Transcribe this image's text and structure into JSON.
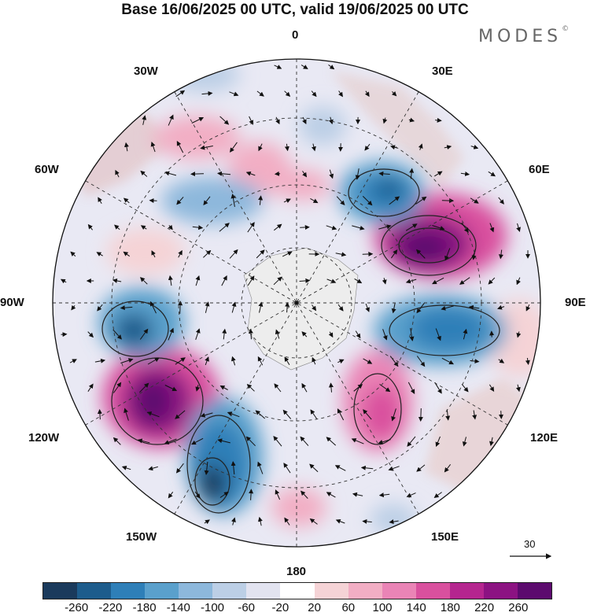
{
  "title": "Base 16/06/2025 00 UTC, valid 19/06/2025 00 UTC",
  "brand": {
    "name": "MODES",
    "mark": "©"
  },
  "longitude_labels": [
    "0",
    "30E",
    "60E",
    "90E",
    "120E",
    "150E",
    "180",
    "150W",
    "120W",
    "90W",
    "60W",
    "30W"
  ],
  "colorbar": {
    "labels": [
      "-260",
      "-220",
      "-180",
      "-140",
      "-100",
      "-60",
      "-20",
      "20",
      "60",
      "100",
      "140",
      "180",
      "220",
      "260"
    ],
    "colors": [
      "#1a3a5c",
      "#1d5c8c",
      "#2e7fb8",
      "#5aa0cc",
      "#8db8dc",
      "#bccfe6",
      "#e2e3f0",
      "#ffffff",
      "#f5d3d6",
      "#f2aec4",
      "#ea84b6",
      "#d9509e",
      "#b5258f",
      "#8c1282",
      "#5c0a6e"
    ]
  },
  "reference_vector": {
    "value": "30",
    "icon": "arrow-right-icon"
  },
  "map": {
    "projection": "south-polar-stereographic",
    "pole_icon": "dot-icon",
    "background_land": "#e6e6e6"
  }
}
